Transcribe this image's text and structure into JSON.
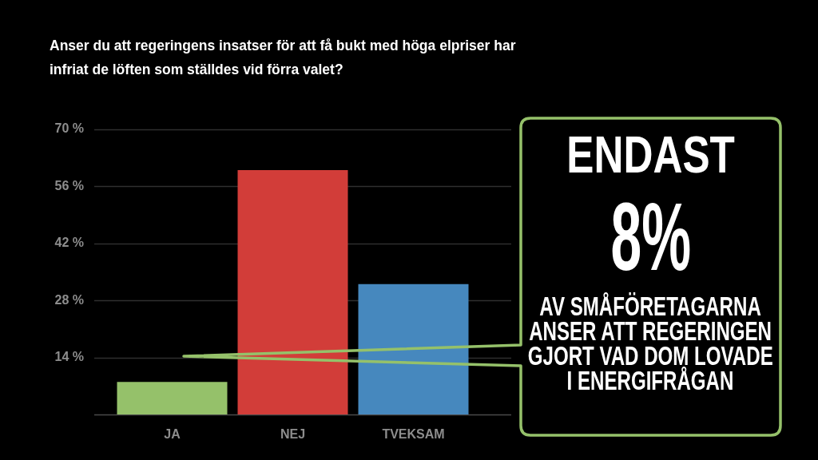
{
  "chart_data": {
    "type": "bar",
    "title": "Anser du att regeringens insatser för att få bukt med höga elpriser har infriat de löften som ställdes vid förra valet?",
    "categories": [
      "JA",
      "NEJ",
      "TVEKSAM"
    ],
    "values": [
      8,
      60,
      32
    ],
    "colors": [
      "#95c16a",
      "#d23d39",
      "#4688be"
    ],
    "ylim": [
      0,
      70
    ],
    "yticks": [
      {
        "value": 0,
        "label": null
      },
      {
        "value": 14,
        "label": "14 %"
      },
      {
        "value": 28,
        "label": "28 %"
      },
      {
        "value": 42,
        "label": "42 %"
      },
      {
        "value": 56,
        "label": "56 %"
      },
      {
        "value": 70,
        "label": "70 %"
      }
    ],
    "grid": "y",
    "annotations": [
      "ENDAST\n8%\nAV SMÅFÖRETAGARNA\nANSER ATT REGERINGEN\nGJORT VAD DOM LOVADE\nI ENERGIFRÅGAN"
    ]
  }
}
